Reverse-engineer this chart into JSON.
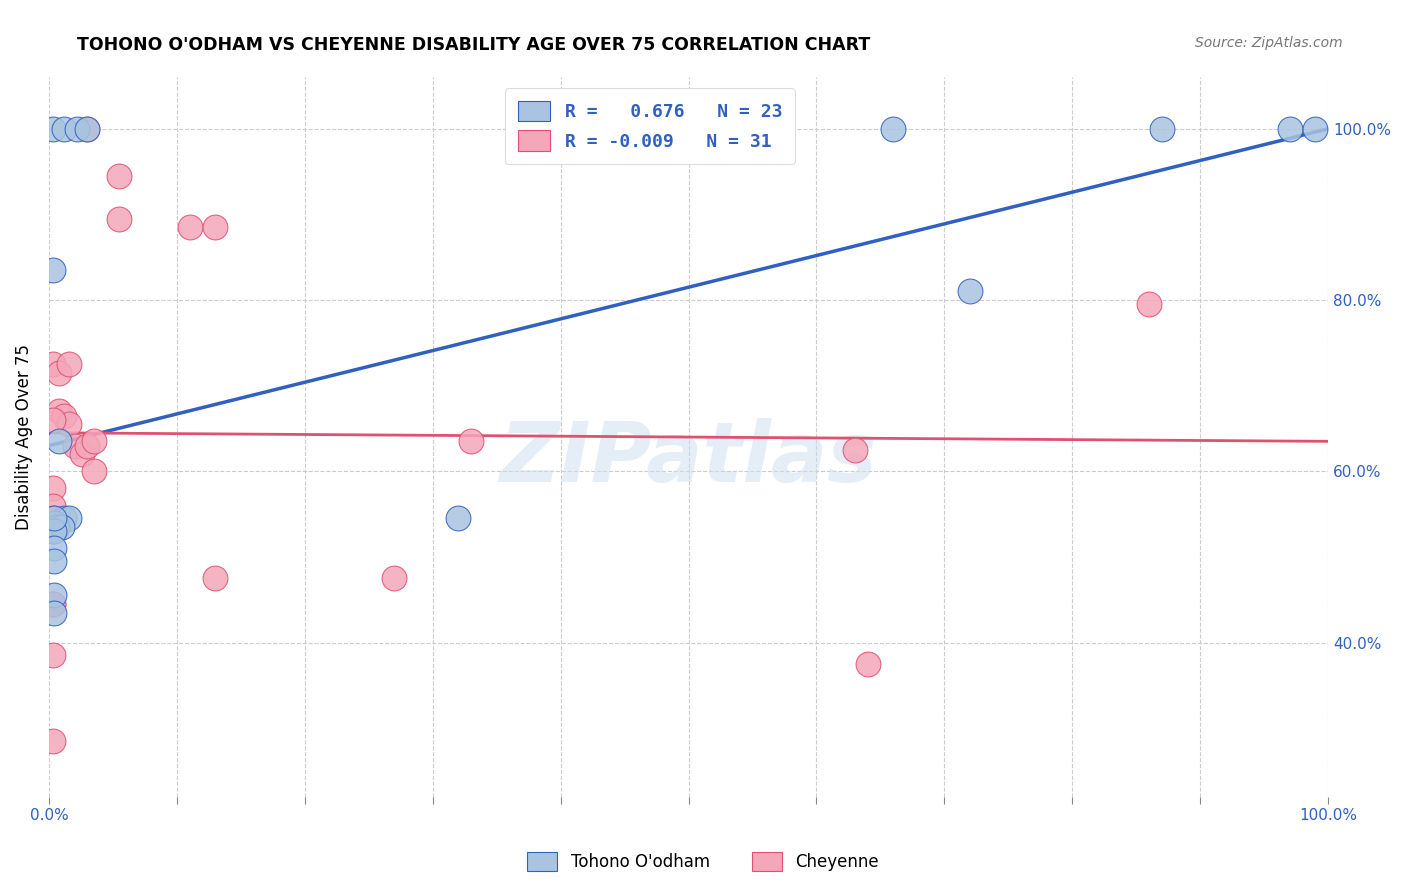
{
  "title": "TOHONO O'ODHAM VS CHEYENNE DISABILITY AGE OVER 75 CORRELATION CHART",
  "source": "Source: ZipAtlas.com",
  "ylabel": "Disability Age Over 75",
  "legend_label1": "Tohono O'odham",
  "legend_label2": "Cheyenne",
  "legend_r1": "R =   0.676",
  "legend_n1": "N = 23",
  "legend_r2": "R = -0.009",
  "legend_n2": "N = 31",
  "xmin": 0.0,
  "xmax": 1.0,
  "ymin": 0.22,
  "ymax": 1.06,
  "blue_color": "#a8c4e0",
  "pink_color": "#f4a7b9",
  "blue_line_color": "#3060c0",
  "pink_line_color": "#e05070",
  "grid_color": "#cccccc",
  "watermark": "ZIPatlas",
  "blue_x": [
    0.003,
    0.012,
    0.022,
    0.03,
    0.003,
    0.008,
    0.012,
    0.016,
    0.004,
    0.006,
    0.01,
    0.004,
    0.004,
    0.004,
    0.004,
    0.004,
    0.004,
    0.32,
    0.66,
    0.72,
    0.87,
    0.97,
    0.99
  ],
  "blue_y": [
    1.0,
    1.0,
    1.0,
    1.0,
    0.835,
    0.635,
    0.545,
    0.545,
    0.54,
    0.535,
    0.535,
    0.53,
    0.51,
    0.495,
    0.455,
    0.435,
    0.545,
    0.545,
    1.0,
    0.81,
    1.0,
    1.0,
    1.0
  ],
  "pink_x": [
    0.03,
    0.055,
    0.055,
    0.11,
    0.13,
    0.003,
    0.008,
    0.008,
    0.012,
    0.016,
    0.016,
    0.02,
    0.026,
    0.03,
    0.035,
    0.035,
    0.003,
    0.003,
    0.003,
    0.003,
    0.003,
    0.33,
    0.63,
    0.64,
    0.86,
    0.003,
    0.13,
    0.27,
    0.003,
    0.003,
    0.003
  ],
  "pink_y": [
    1.0,
    0.945,
    0.895,
    0.885,
    0.885,
    0.725,
    0.715,
    0.67,
    0.665,
    0.725,
    0.655,
    0.63,
    0.62,
    0.63,
    0.635,
    0.6,
    0.58,
    0.56,
    0.545,
    0.53,
    0.445,
    0.635,
    0.625,
    0.375,
    0.795,
    0.445,
    0.475,
    0.475,
    0.385,
    0.285,
    0.66
  ],
  "blue_trend_x": [
    0.0,
    1.0
  ],
  "blue_trend_y": [
    0.63,
    1.0
  ],
  "pink_trend_x": [
    0.0,
    1.0
  ],
  "pink_trend_y": [
    0.645,
    0.635
  ],
  "xtick_positions": [
    0.0,
    0.1,
    0.2,
    0.3,
    0.4,
    0.5,
    0.6,
    0.7,
    0.8,
    0.9,
    1.0
  ],
  "ytick_positions": [
    0.4,
    0.6,
    0.8,
    1.0
  ]
}
